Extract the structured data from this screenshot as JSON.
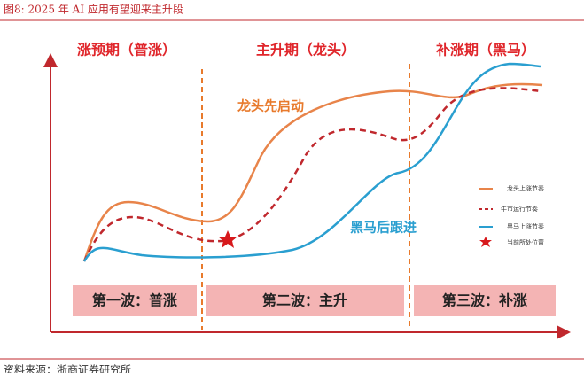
{
  "header": {
    "title": "图8:  2025 年 AI 应用有望迎来主升段"
  },
  "phases": [
    {
      "label": "涨预期（普涨）"
    },
    {
      "label": "主升期（龙头）"
    },
    {
      "label": "补涨期（黑马）"
    }
  ],
  "waves": [
    {
      "label": "第一波：普涨"
    },
    {
      "label": "第二波：主升"
    },
    {
      "label": "第三波：补涨"
    }
  ],
  "annotations": [
    {
      "text": "龙头先启动"
    },
    {
      "text": "黑马后跟进"
    }
  ],
  "legend": [
    {
      "label": "龙头上涨节奏"
    },
    {
      "label": "牛市运行节奏"
    },
    {
      "label": "黑马上涨节奏"
    },
    {
      "label": "当前所处位置"
    }
  ],
  "footer": {
    "source": "资料来源：浙商证券研究所"
  }
}
